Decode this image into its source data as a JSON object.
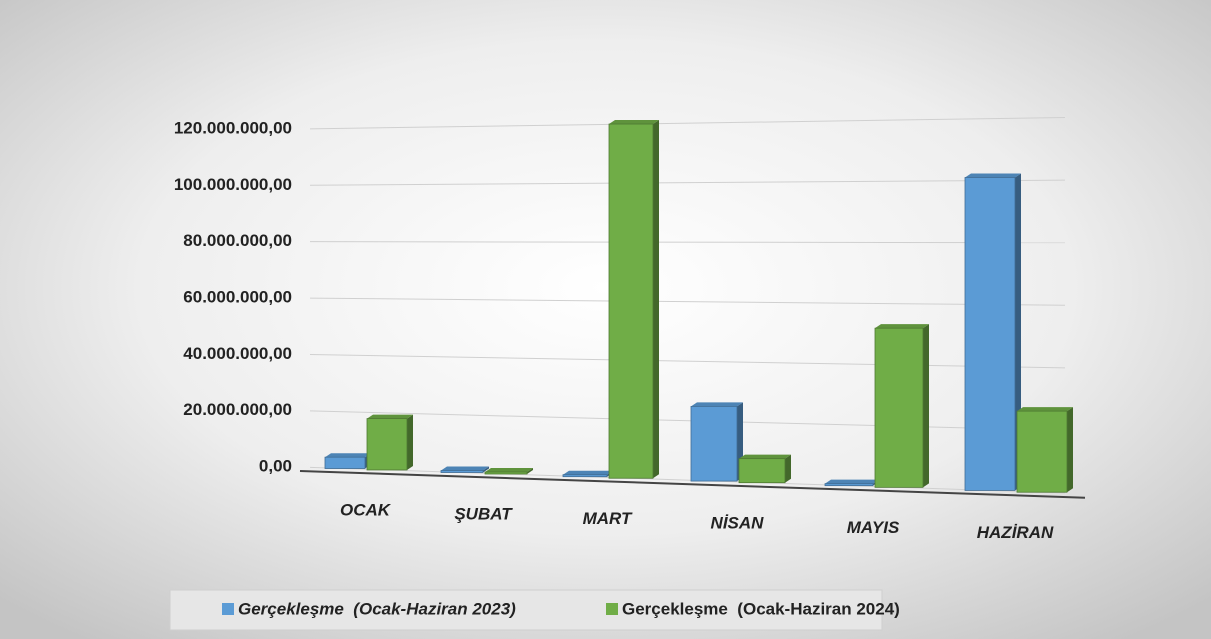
{
  "chart_data": {
    "type": "bar",
    "categories": [
      "OCAK",
      "ŞUBAT",
      "MART",
      "NİSAN",
      "MAYIS",
      "HAZİRAN"
    ],
    "series": [
      {
        "name": "Gerçekleşme  (Ocak-Haziran 2023)",
        "color": "#5b9bd5",
        "values": [
          4000000,
          300000,
          200000,
          25000000,
          300000,
          101000000
        ]
      },
      {
        "name": "Gerçekleşme  (Ocak-Haziran 2024)",
        "color": "#70ad47",
        "values": [
          18000000,
          300000,
          120000000,
          8000000,
          52000000,
          26000000
        ]
      }
    ],
    "ylim": [
      0,
      120000000
    ],
    "yticks": [
      {
        "value": 0,
        "label": "0,00"
      },
      {
        "value": 20000000,
        "label": "20.000.000,00"
      },
      {
        "value": 40000000,
        "label": "40.000.000,00"
      },
      {
        "value": 60000000,
        "label": "60.000.000,00"
      },
      {
        "value": 80000000,
        "label": "80.000.000,00"
      },
      {
        "value": 100000000,
        "label": "100.000.000,00"
      },
      {
        "value": 120000000,
        "label": "120.000.000,00"
      }
    ],
    "grid": true,
    "legend": "bottom"
  }
}
